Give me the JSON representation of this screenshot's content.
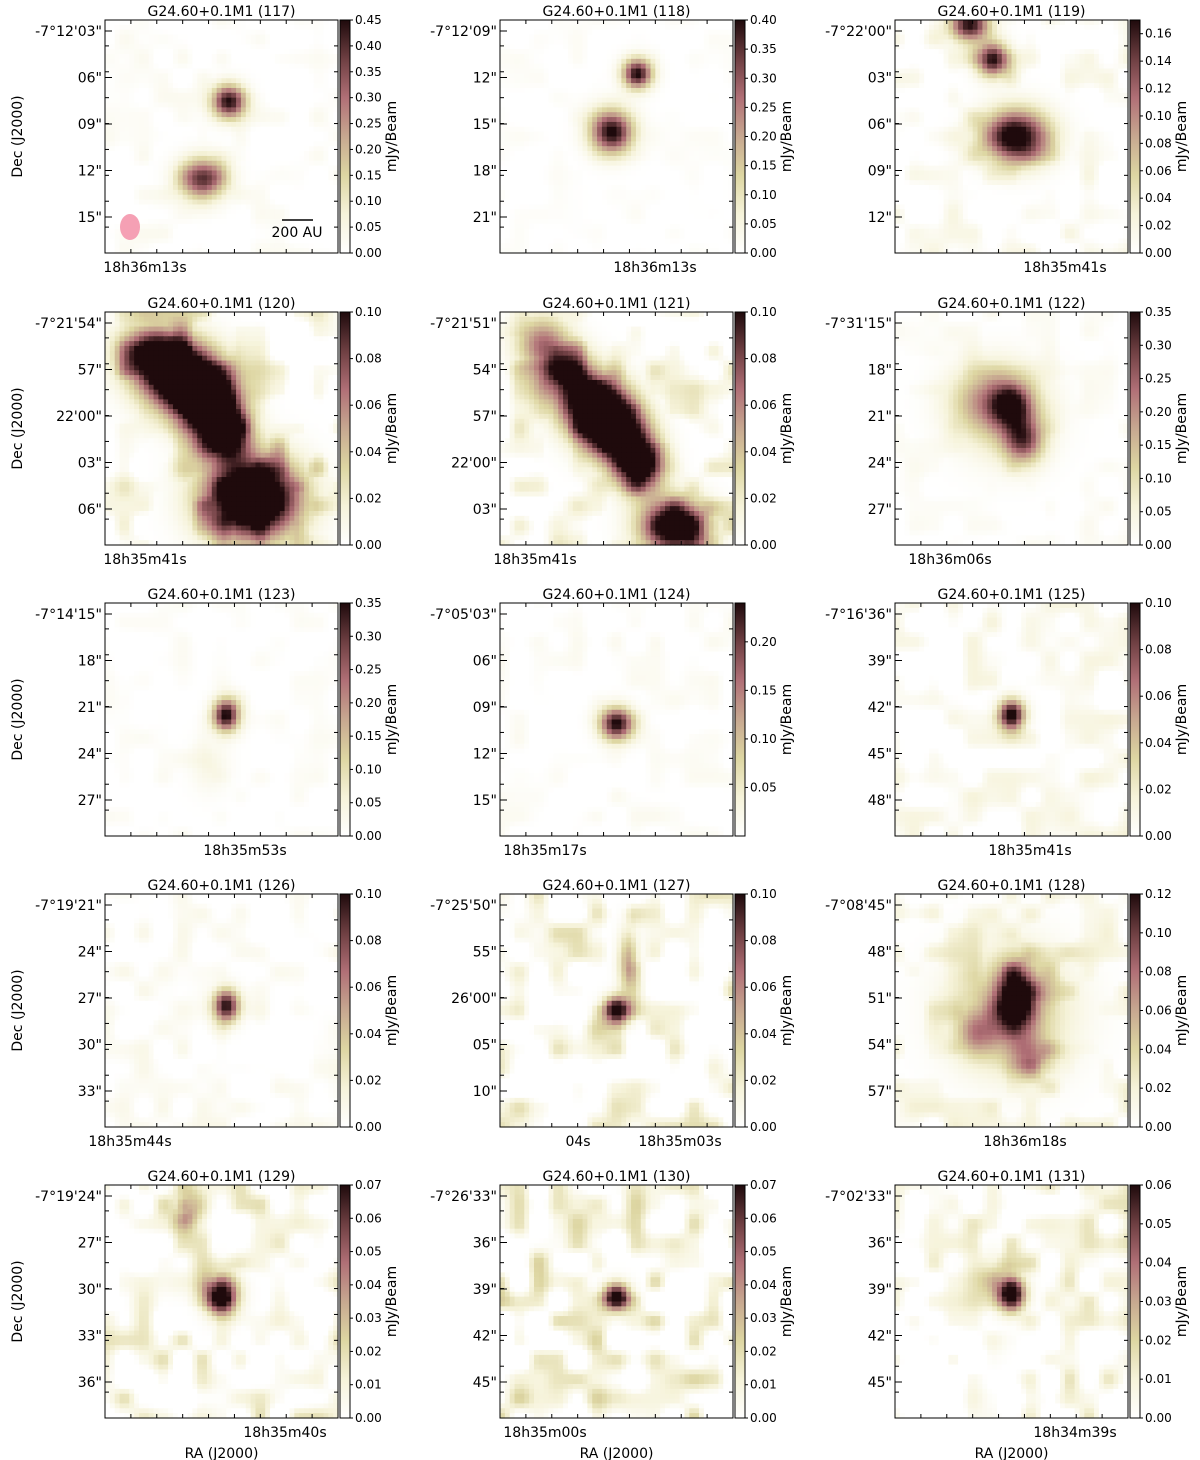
{
  "figure": {
    "ylabel_text": "Dec (J2000)",
    "xlabel_text": "RA (J2000)",
    "cbar_label": "mJy/Beam",
    "scalebar_text": "200 AU",
    "beam_color": "#f5a0b4",
    "colormap": [
      "#ffffff",
      "#f6f3da",
      "#ddd6a2",
      "#c7a890",
      "#b06f76",
      "#6e3f42",
      "#1f0a0c"
    ]
  },
  "chart_data": [
    {
      "type": "heatmap",
      "title": "G24.60+0.1M1 (117)",
      "ra_tick": "18h36m13s",
      "dec_ticks": [
        "-7°12'03\"",
        "06\"",
        "09\"",
        "12\"",
        "15\""
      ],
      "cbar_ticks": [
        "0.00",
        "0.05",
        "0.10",
        "0.15",
        "0.20",
        "0.25",
        "0.30",
        "0.35",
        "0.40",
        "0.45"
      ],
      "vmax": 0.45,
      "beam": true,
      "scalebar": true,
      "sources": [
        [
          0.53,
          0.35,
          0.05,
          0.05,
          0.45
        ],
        [
          0.42,
          0.68,
          0.07,
          0.06,
          0.4
        ]
      ],
      "noise": 0.15
    },
    {
      "type": "heatmap",
      "title": "G24.60+0.1M1 (118)",
      "ra_tick": "18h36m13s",
      "dec_ticks": [
        "-7°12'09\"",
        "12\"",
        "15\"",
        "18\"",
        "21\""
      ],
      "cbar_ticks": [
        "0.00",
        "0.05",
        "0.10",
        "0.15",
        "0.20",
        "0.25",
        "0.30",
        "0.35",
        "0.40"
      ],
      "vmax": 0.4,
      "beam": false,
      "scalebar": false,
      "sources": [
        [
          0.59,
          0.23,
          0.045,
          0.045,
          0.4
        ],
        [
          0.48,
          0.48,
          0.065,
          0.065,
          0.4
        ]
      ],
      "noise": 0.1
    },
    {
      "type": "heatmap",
      "title": "G24.60+0.1M1 (119)",
      "ra_tick": "18h35m41s",
      "dec_ticks": [
        "-7°22'00\"",
        "03\"",
        "06\"",
        "09\"",
        "12\""
      ],
      "cbar_ticks": [
        "0.00",
        "0.02",
        "0.04",
        "0.06",
        "0.08",
        "0.10",
        "0.12",
        "0.14",
        "0.16"
      ],
      "vmax": 0.17,
      "beam": false,
      "scalebar": false,
      "sources": [
        [
          0.32,
          0.02,
          0.06,
          0.05,
          0.17
        ],
        [
          0.42,
          0.17,
          0.05,
          0.05,
          0.17
        ],
        [
          0.52,
          0.5,
          0.1,
          0.08,
          0.19
        ]
      ],
      "noise": 0.3
    },
    {
      "type": "heatmap",
      "title": "G24.60+0.1M1 (120)",
      "ra_tick": "18h35m41s",
      "dec_ticks": [
        "-7°21'54\"",
        "57\"",
        "22'00\"",
        "03\"",
        "06\""
      ],
      "cbar_ticks": [
        "0.00",
        "0.02",
        "0.04",
        "0.06",
        "0.08",
        "0.10"
      ],
      "vmax": 0.1,
      "beam": false,
      "scalebar": false,
      "sources": [
        [
          0.2,
          0.17,
          0.1,
          0.08,
          0.09
        ],
        [
          0.33,
          0.28,
          0.12,
          0.1,
          0.14
        ],
        [
          0.44,
          0.4,
          0.09,
          0.09,
          0.13
        ],
        [
          0.52,
          0.52,
          0.07,
          0.08,
          0.12
        ],
        [
          0.63,
          0.8,
          0.14,
          0.12,
          0.16
        ]
      ],
      "noise": 0.55
    },
    {
      "type": "heatmap",
      "title": "G24.60+0.1M1 (121)",
      "ra_tick": "18h35m41s",
      "dec_ticks": [
        "-7°21'51\"",
        "54\"",
        "57\"",
        "22'00\"",
        "03\""
      ],
      "cbar_ticks": [
        "0.00",
        "0.02",
        "0.04",
        "0.06",
        "0.08",
        "0.10"
      ],
      "vmax": 0.1,
      "beam": false,
      "scalebar": false,
      "sources": [
        [
          0.18,
          0.13,
          0.08,
          0.08,
          0.06
        ],
        [
          0.28,
          0.26,
          0.08,
          0.08,
          0.07
        ],
        [
          0.4,
          0.4,
          0.1,
          0.09,
          0.13
        ],
        [
          0.5,
          0.52,
          0.09,
          0.09,
          0.13
        ],
        [
          0.6,
          0.66,
          0.07,
          0.08,
          0.12
        ],
        [
          0.75,
          0.92,
          0.1,
          0.08,
          0.13
        ]
      ],
      "noise": 0.55
    },
    {
      "type": "heatmap",
      "title": "G24.60+0.1M1 (122)",
      "ra_tick": "18h36m06s",
      "dec_ticks": [
        "-7°31'15\"",
        "18\"",
        "21\"",
        "24\"",
        "27\""
      ],
      "cbar_ticks": [
        "0.00",
        "0.05",
        "0.10",
        "0.15",
        "0.20",
        "0.25",
        "0.30",
        "0.35"
      ],
      "vmax": 0.35,
      "beam": false,
      "scalebar": false,
      "sources": [
        [
          0.42,
          0.38,
          0.12,
          0.1,
          0.18
        ],
        [
          0.5,
          0.4,
          0.05,
          0.06,
          0.22
        ],
        [
          0.55,
          0.55,
          0.06,
          0.07,
          0.25
        ],
        [
          0.47,
          0.45,
          0.14,
          0.14,
          0.08
        ]
      ],
      "noise": 0.15
    },
    {
      "type": "heatmap",
      "title": "G24.60+0.1M1 (123)",
      "ra_tick": "18h35m53s",
      "dec_ticks": [
        "-7°14'15\"",
        "18\"",
        "21\"",
        "24\"",
        "27\""
      ],
      "cbar_ticks": [
        "0.00",
        "0.05",
        "0.10",
        "0.15",
        "0.20",
        "0.25",
        "0.30",
        "0.35"
      ],
      "vmax": 0.35,
      "beam": false,
      "scalebar": false,
      "sources": [
        [
          0.52,
          0.48,
          0.04,
          0.05,
          0.35
        ],
        [
          0.45,
          0.7,
          0.06,
          0.08,
          0.04
        ]
      ],
      "noise": 0.12
    },
    {
      "type": "heatmap",
      "title": "G24.60+0.1M1 (124)",
      "ra_tick": "18h35m17s",
      "dec_ticks": [
        "-7°05'03\"",
        "06\"",
        "09\"",
        "12\"",
        "15\""
      ],
      "cbar_ticks": [
        "0.05",
        "0.10",
        "0.15",
        "0.20"
      ],
      "vmax": 0.24,
      "beam": false,
      "scalebar": false,
      "sources": [
        [
          0.5,
          0.52,
          0.05,
          0.05,
          0.24
        ]
      ],
      "noise": 0.15
    },
    {
      "type": "heatmap",
      "title": "G24.60+0.1M1 (125)",
      "ra_tick": "18h35m41s",
      "dec_ticks": [
        "-7°16'36\"",
        "39\"",
        "42\"",
        "45\"",
        "48\""
      ],
      "cbar_ticks": [
        "0.00",
        "0.02",
        "0.04",
        "0.06",
        "0.08",
        "0.10"
      ],
      "vmax": 0.1,
      "beam": false,
      "scalebar": false,
      "sources": [
        [
          0.5,
          0.48,
          0.04,
          0.045,
          0.11
        ]
      ],
      "noise": 0.35
    },
    {
      "type": "heatmap",
      "title": "G24.60+0.1M1 (126)",
      "ra_tick": "18h35m44s",
      "dec_ticks": [
        "-7°19'21\"",
        "24\"",
        "27\"",
        "30\"",
        "33\""
      ],
      "cbar_ticks": [
        "0.00",
        "0.02",
        "0.04",
        "0.06",
        "0.08",
        "0.10"
      ],
      "vmax": 0.1,
      "beam": false,
      "scalebar": false,
      "sources": [
        [
          0.52,
          0.48,
          0.04,
          0.05,
          0.1
        ]
      ],
      "noise": 0.22
    },
    {
      "type": "heatmap",
      "title": "G24.60+0.1M1 (127)",
      "ra_tick": "18h35m03s",
      "ra_tick2": "04s",
      "dec_ticks": [
        "-7°25'50\"",
        "55\"",
        "26'00\"",
        "05\"",
        "10\""
      ],
      "cbar_ticks": [
        "0.00",
        "0.02",
        "0.04",
        "0.06",
        "0.08",
        "0.10"
      ],
      "vmax": 0.1,
      "beam": false,
      "scalebar": false,
      "sources": [
        [
          0.5,
          0.5,
          0.04,
          0.04,
          0.12
        ],
        [
          0.55,
          0.3,
          0.03,
          0.1,
          0.05
        ]
      ],
      "noise": 0.65
    },
    {
      "type": "heatmap",
      "title": "G24.60+0.1M1 (128)",
      "ra_tick": "18h36m18s",
      "dec_ticks": [
        "-7°08'45\"",
        "48\"",
        "51\"",
        "54\"",
        "57\""
      ],
      "cbar_ticks": [
        "0.00",
        "0.02",
        "0.04",
        "0.06",
        "0.08",
        "0.10",
        "0.12"
      ],
      "vmax": 0.12,
      "beam": false,
      "scalebar": false,
      "sources": [
        [
          0.52,
          0.45,
          0.06,
          0.1,
          0.12
        ],
        [
          0.5,
          0.5,
          0.18,
          0.18,
          0.05
        ],
        [
          0.35,
          0.6,
          0.06,
          0.07,
          0.05
        ],
        [
          0.58,
          0.7,
          0.07,
          0.06,
          0.05
        ]
      ],
      "noise": 0.4
    },
    {
      "type": "heatmap",
      "title": "G24.60+0.1M1 (129)",
      "ra_tick": "18h35m40s",
      "dec_ticks": [
        "-7°19'24\"",
        "27\"",
        "30\"",
        "33\"",
        "36\""
      ],
      "cbar_ticks": [
        "0.00",
        "0.01",
        "0.02",
        "0.03",
        "0.04",
        "0.05",
        "0.06",
        "0.07"
      ],
      "vmax": 0.07,
      "beam": false,
      "scalebar": false,
      "sources": [
        [
          0.5,
          0.47,
          0.05,
          0.06,
          0.08
        ],
        [
          0.35,
          0.1,
          0.04,
          0.06,
          0.035
        ]
      ],
      "noise": 0.6
    },
    {
      "type": "heatmap",
      "title": "G24.60+0.1M1 (130)",
      "ra_tick": "18h35m00s",
      "dec_ticks": [
        "-7°26'33\"",
        "36\"",
        "39\"",
        "42\"",
        "45\""
      ],
      "cbar_ticks": [
        "0.00",
        "0.01",
        "0.02",
        "0.03",
        "0.04",
        "0.05",
        "0.06",
        "0.07"
      ],
      "vmax": 0.07,
      "beam": false,
      "scalebar": false,
      "sources": [
        [
          0.5,
          0.48,
          0.04,
          0.04,
          0.08
        ]
      ],
      "noise": 0.75
    },
    {
      "type": "heatmap",
      "title": "G24.60+0.1M1 (131)",
      "ra_tick": "18h34m39s",
      "dec_ticks": [
        "-7°02'33\"",
        "36\"",
        "39\"",
        "42\"",
        "45\""
      ],
      "cbar_ticks": [
        "0.00",
        "0.01",
        "0.02",
        "0.03",
        "0.04",
        "0.05",
        "0.06"
      ],
      "vmax": 0.06,
      "beam": false,
      "scalebar": false,
      "sources": [
        [
          0.5,
          0.47,
          0.04,
          0.05,
          0.07
        ],
        [
          0.43,
          0.4,
          0.07,
          0.07,
          0.015
        ]
      ],
      "noise": 0.55
    }
  ]
}
